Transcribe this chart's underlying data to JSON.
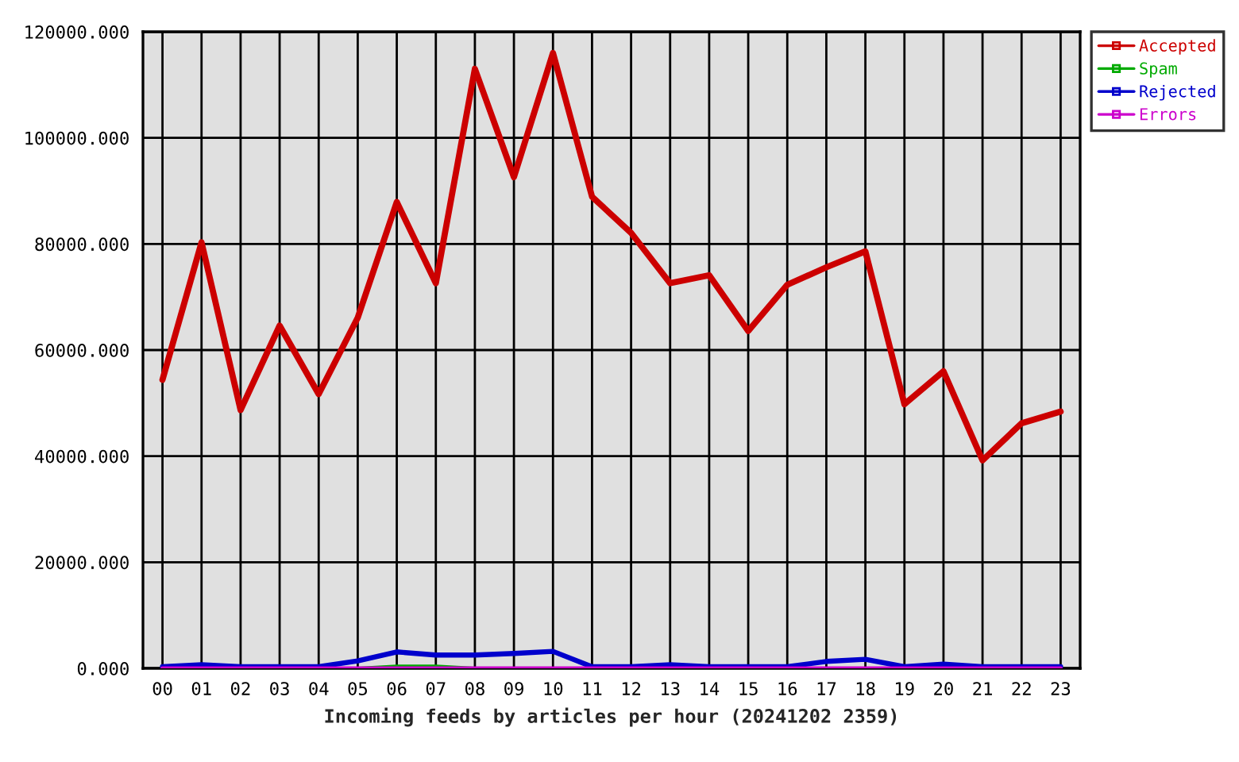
{
  "chart_data": {
    "type": "line",
    "xlabel": "Incoming feeds by articles per hour (20241202 2359)",
    "categories": [
      "00",
      "01",
      "02",
      "03",
      "04",
      "05",
      "06",
      "07",
      "08",
      "09",
      "10",
      "11",
      "12",
      "13",
      "14",
      "15",
      "16",
      "17",
      "18",
      "19",
      "20",
      "21",
      "22",
      "23"
    ],
    "series": [
      {
        "name": "Accepted",
        "color": "#cc0000",
        "values": [
          54400,
          80300,
          48700,
          64600,
          51700,
          66100,
          87900,
          72600,
          113000,
          92600,
          116000,
          88900,
          82100,
          72600,
          74100,
          63600,
          72300,
          75600,
          78600,
          49800,
          56000,
          39200,
          46200,
          48400
        ]
      },
      {
        "name": "Spam",
        "color": "#00aa00",
        "values": [
          null,
          null,
          null,
          null,
          null,
          0,
          400,
          400,
          0,
          null,
          null,
          null,
          null,
          null,
          null,
          null,
          null,
          null,
          null,
          null,
          null,
          null,
          null,
          null
        ]
      },
      {
        "name": "Rejected",
        "color": "#0000cc",
        "values": [
          300,
          700,
          300,
          300,
          300,
          1400,
          3100,
          2500,
          2500,
          2800,
          3200,
          300,
          300,
          700,
          300,
          300,
          300,
          1300,
          1700,
          300,
          800,
          300,
          300,
          300
        ]
      },
      {
        "name": "Errors",
        "color": "#cc00cc",
        "values": [
          0,
          0,
          0,
          0,
          0,
          0,
          0,
          0,
          0,
          0,
          0,
          0,
          0,
          0,
          0,
          0,
          0,
          0,
          0,
          0,
          0,
          0,
          0,
          0
        ]
      }
    ],
    "ylim": [
      0,
      120000
    ],
    "yticks": [
      {
        "value": 0,
        "label": "0.000"
      },
      {
        "value": 20000,
        "label": "20000.000"
      },
      {
        "value": 40000,
        "label": "40000.000"
      },
      {
        "value": 60000,
        "label": "60000.000"
      },
      {
        "value": 80000,
        "label": "80000.000"
      },
      {
        "value": 100000,
        "label": "100000.000"
      },
      {
        "value": 120000,
        "label": "120000.000"
      }
    ],
    "grid": true,
    "legend": "top right"
  }
}
